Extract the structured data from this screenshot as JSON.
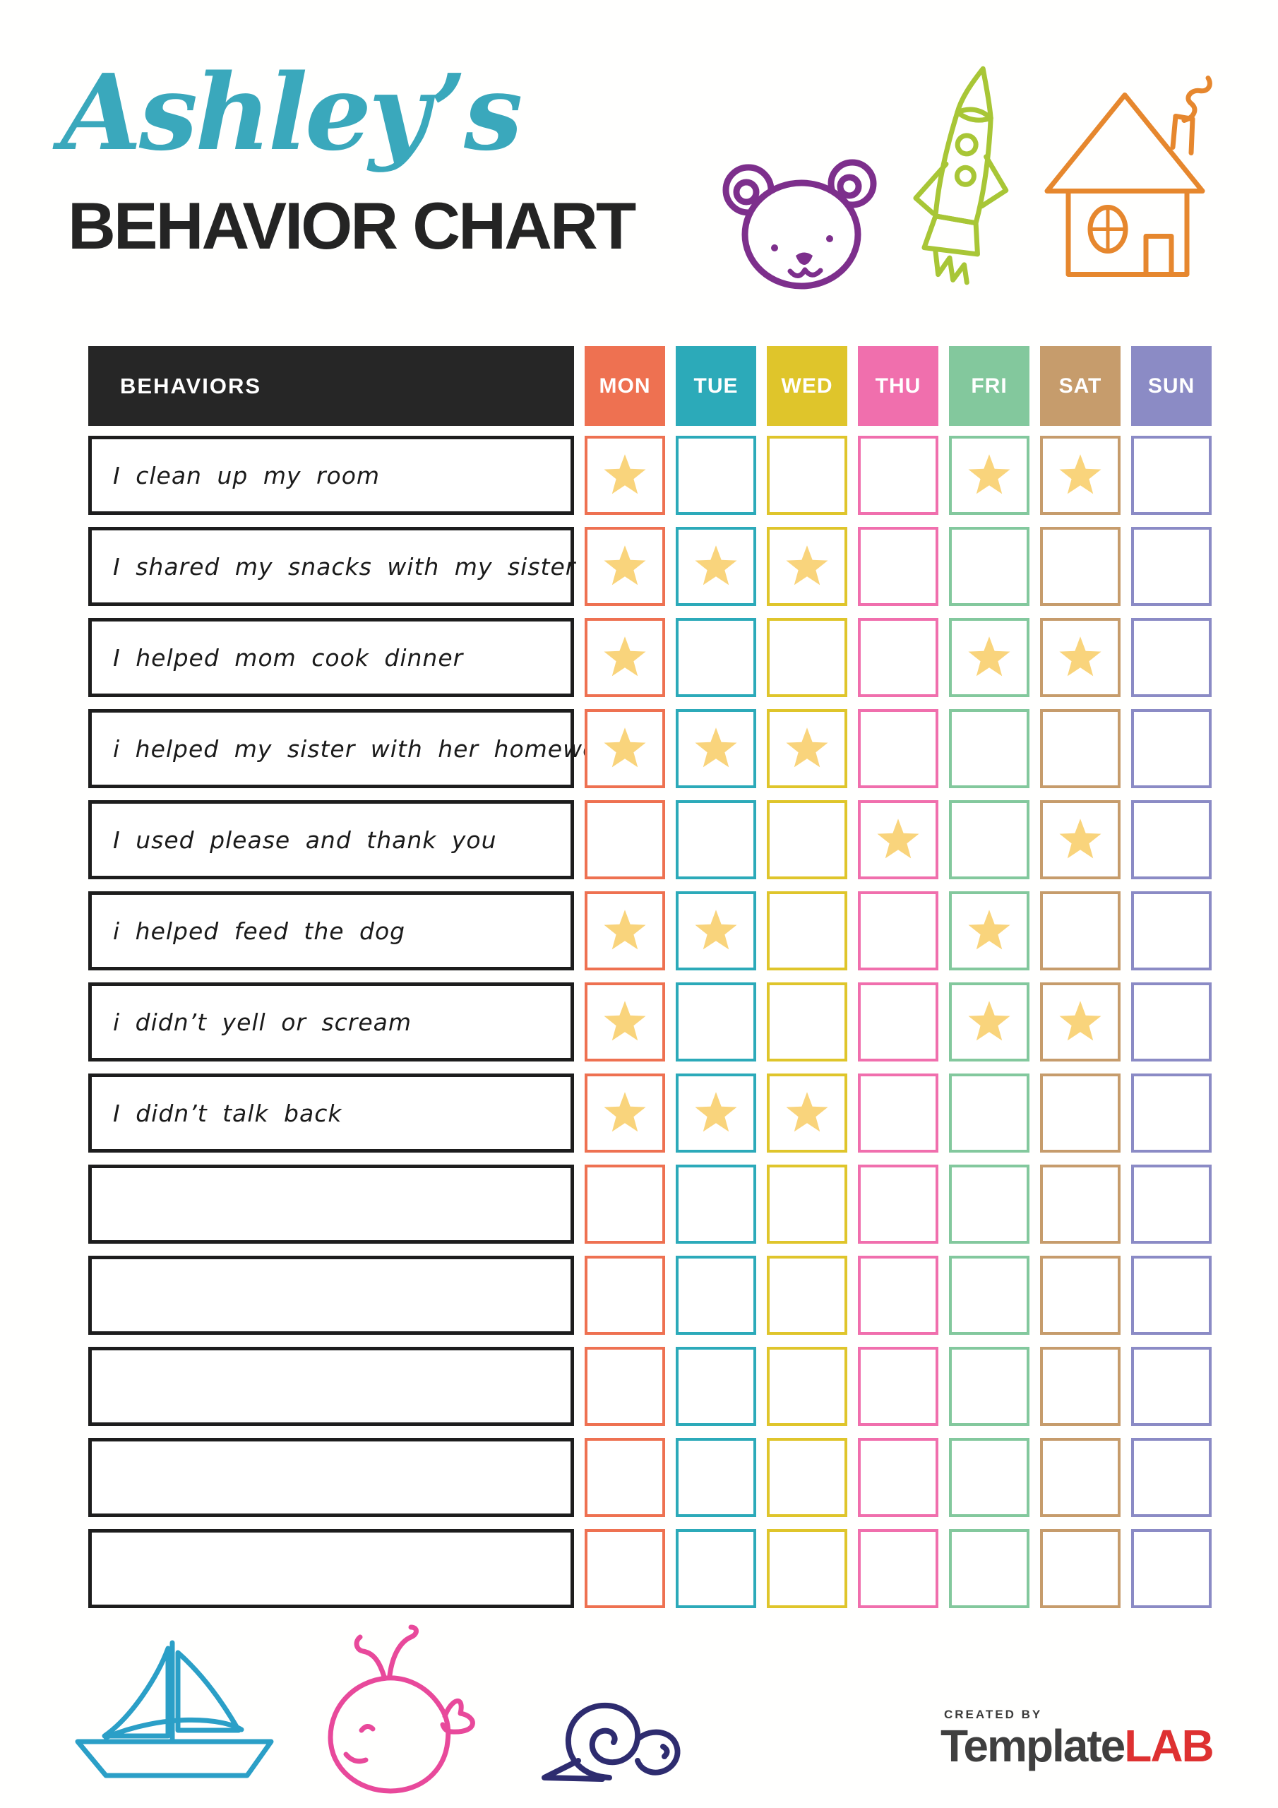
{
  "header": {
    "script_title": "Ashley’s",
    "main_title": "BEHAVIOR CHART"
  },
  "colors": {
    "accent": "#3AA8BC",
    "table_header_bg": "#262626",
    "behavior_border": "#1D1D1D",
    "star": "#F9D47C",
    "page_bg": "#FFFFFE"
  },
  "decorations": {
    "top_doodles": [
      {
        "name": "bear-doodle",
        "color": "#7D2F8C"
      },
      {
        "name": "rocket-doodle",
        "color": "#A8C636"
      },
      {
        "name": "house-doodle",
        "color": "#E6872E"
      }
    ],
    "bottom_doodles": [
      {
        "name": "sailboat-doodle",
        "color": "#2B9FC7"
      },
      {
        "name": "whale-doodle",
        "color": "#E8499B"
      },
      {
        "name": "snail-doodle",
        "color": "#2E2C6F"
      }
    ]
  },
  "table": {
    "behaviors_header": "BEHAVIORS",
    "days": [
      {
        "label": "MON",
        "color": "#EE7151"
      },
      {
        "label": "TUE",
        "color": "#2CAAB9"
      },
      {
        "label": "WED",
        "color": "#DFC52B"
      },
      {
        "label": "THU",
        "color": "#F06FAD"
      },
      {
        "label": "FRI",
        "color": "#83C89D"
      },
      {
        "label": "SAT",
        "color": "#C69C6C"
      },
      {
        "label": "SUN",
        "color": "#8B8BC5"
      }
    ],
    "rows": [
      {
        "label": "I clean up my room",
        "stars": [
          1,
          0,
          0,
          0,
          1,
          1,
          0
        ]
      },
      {
        "label": "I shared my snacks with my sister",
        "stars": [
          1,
          1,
          1,
          0,
          0,
          0,
          0
        ]
      },
      {
        "label": "I helped mom cook dinner",
        "stars": [
          1,
          0,
          0,
          0,
          1,
          1,
          0
        ]
      },
      {
        "label": "i helped my sister with her homework",
        "stars": [
          1,
          1,
          1,
          0,
          0,
          0,
          0
        ]
      },
      {
        "label": "I used please and thank you",
        "stars": [
          0,
          0,
          0,
          1,
          0,
          1,
          0
        ]
      },
      {
        "label": "i helped feed the dog",
        "stars": [
          1,
          1,
          0,
          0,
          1,
          0,
          0
        ]
      },
      {
        "label": "i didn’t yell or scream",
        "stars": [
          1,
          0,
          0,
          0,
          1,
          1,
          0
        ]
      },
      {
        "label": "I didn’t talk back",
        "stars": [
          1,
          1,
          1,
          0,
          0,
          0,
          0
        ]
      },
      {
        "label": "",
        "stars": [
          0,
          0,
          0,
          0,
          0,
          0,
          0
        ]
      },
      {
        "label": "",
        "stars": [
          0,
          0,
          0,
          0,
          0,
          0,
          0
        ]
      },
      {
        "label": "",
        "stars": [
          0,
          0,
          0,
          0,
          0,
          0,
          0
        ]
      },
      {
        "label": "",
        "stars": [
          0,
          0,
          0,
          0,
          0,
          0,
          0
        ]
      },
      {
        "label": "",
        "stars": [
          0,
          0,
          0,
          0,
          0,
          0,
          0
        ]
      }
    ]
  },
  "footer": {
    "created_by": "CREATED BY",
    "brand_primary": "Template",
    "brand_accent": "LAB",
    "brand_accent_color": "#DE3131"
  }
}
